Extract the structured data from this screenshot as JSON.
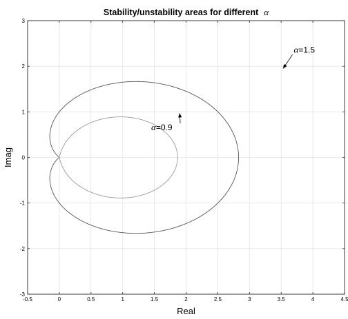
{
  "chart_data": {
    "type": "line",
    "title": {
      "text": "Stability/unstability areas for different",
      "symbol": "α"
    },
    "xlabel": "Real",
    "ylabel": "Imag",
    "xlim": [
      -0.5,
      4.5
    ],
    "ylim": [
      -3,
      3
    ],
    "grid": true,
    "x_ticks": [
      -0.5,
      0,
      0.5,
      1,
      1.5,
      2,
      2.5,
      3,
      3.5,
      4,
      4.5
    ],
    "x_tick_labels": [
      "-0.5",
      "0",
      "0.5",
      "1",
      "1.5",
      "2",
      "2.5",
      "3",
      "3.5",
      "4",
      "4.5"
    ],
    "y_ticks": [
      -3,
      -2,
      -1,
      0,
      1,
      2,
      3
    ],
    "y_tick_labels": [
      "-3",
      "-2",
      "-1",
      "0",
      "1",
      "2",
      "3"
    ],
    "series": [
      {
        "alpha": 1.5,
        "color": "#555555"
      },
      {
        "alpha": 0.9,
        "color": "#9a9a9a"
      }
    ],
    "annotations": [
      {
        "symbol": "α",
        "value": "=1.5",
        "text_at": [
          3.7,
          2.3
        ],
        "arrow_to": [
          3.53,
          1.95
        ]
      },
      {
        "symbol": "α",
        "value": "=0.9",
        "text_at": [
          1.45,
          0.6
        ],
        "arrow_to": [
          1.9,
          0.97
        ]
      }
    ]
  }
}
